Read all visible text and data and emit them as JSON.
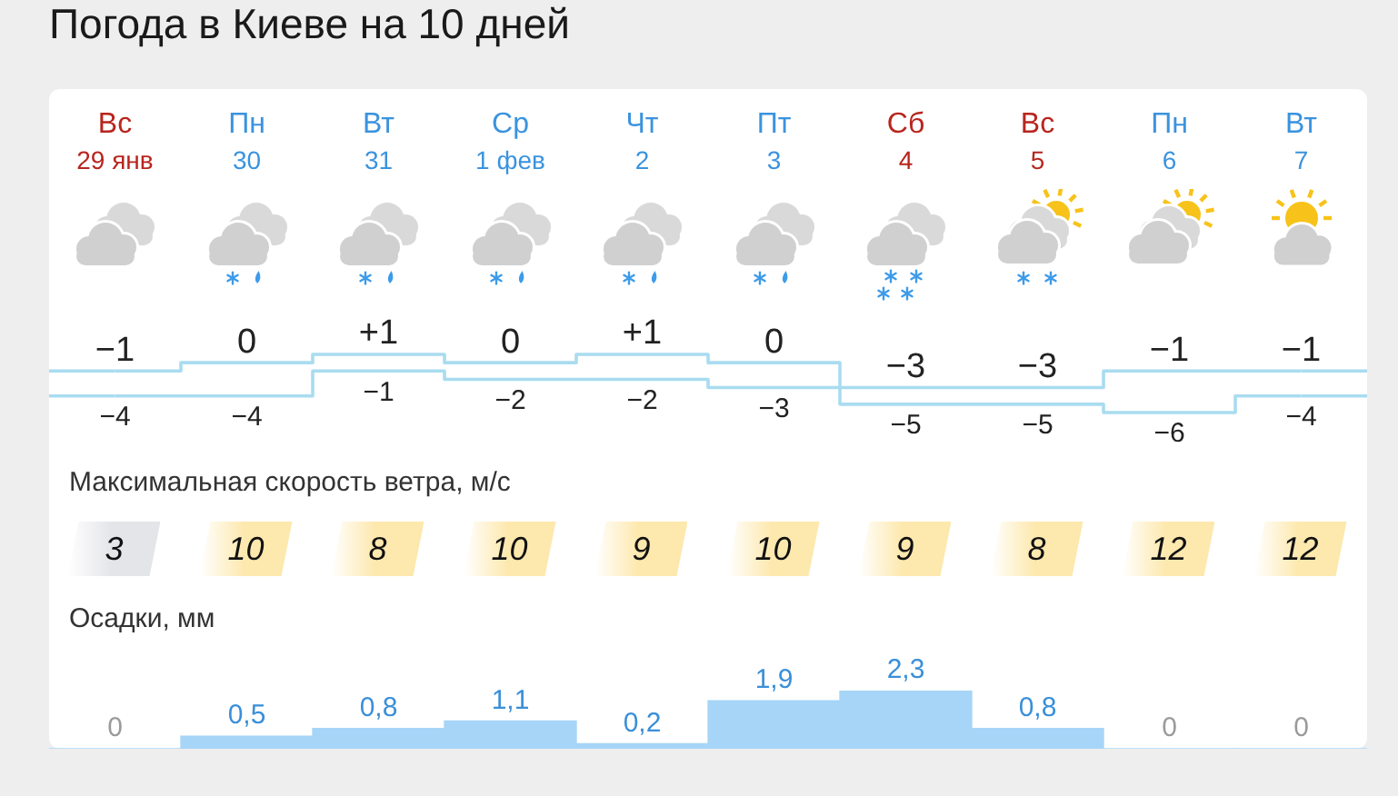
{
  "chart_data": [
    {
      "type": "step",
      "title": "Погода в Киеве на 10 дней",
      "categories": [
        "Вс\n29 янв",
        "Пн\n30",
        "Вт\n31",
        "Ср\n1 фев",
        "Чт\n2",
        "Пт\n3",
        "Сб\n4",
        "Вс\n5",
        "Пн\n6",
        "Вт\n7"
      ],
      "tick_labels": "x",
      "series": [
        {
          "color": "#a9dcf0",
          "values": [
            -1,
            0,
            1,
            0,
            1,
            0,
            -3,
            -3,
            -1,
            -1
          ],
          "value_labels": [
            "−1",
            "0",
            "+1",
            "0",
            "+1",
            "0",
            "−3",
            "−3",
            "−1",
            "−1"
          ]
        },
        {
          "color": "#a9dcf0",
          "values": [
            -4,
            -4,
            -1,
            -2,
            -2,
            -3,
            -5,
            -5,
            -6,
            -4
          ],
          "value_labels": [
            "−4",
            "−4",
            "−1",
            "−2",
            "−2",
            "−3",
            "−5",
            "−5",
            "−6",
            "−4"
          ]
        }
      ]
    },
    {
      "type": "other",
      "title": "Максимальная скорость ветра, м/с",
      "categories": [
        null,
        null,
        null,
        null,
        null,
        null,
        null,
        null,
        null,
        null
      ],
      "values": [
        3,
        10,
        8,
        10,
        9,
        10,
        9,
        8,
        12,
        12
      ],
      "data_labels": true,
      "colors": [
        "#e4e5e8",
        "#fde8ad",
        "#fde8ad",
        "#fde8ad",
        "#fde8ad",
        "#fde8ad",
        "#fde8ad",
        "#fde8ad",
        "#fde8ad",
        "#fde8ad"
      ]
    },
    {
      "type": "bar",
      "title": "Осадки, мм",
      "categories": [
        null,
        null,
        null,
        null,
        null,
        null,
        null,
        null,
        null,
        null
      ],
      "tick_labels": false,
      "values": [
        0,
        0.5,
        0.8,
        1.1,
        0.2,
        1.9,
        2.3,
        0.8,
        0,
        0
      ],
      "value_labels": [
        "0",
        "0,5",
        "0,8",
        "1,1",
        "0,2",
        "1,9",
        "2,3",
        "0,8",
        "0",
        "0"
      ],
      "color": "#a6d5f7"
    }
  ]
}
